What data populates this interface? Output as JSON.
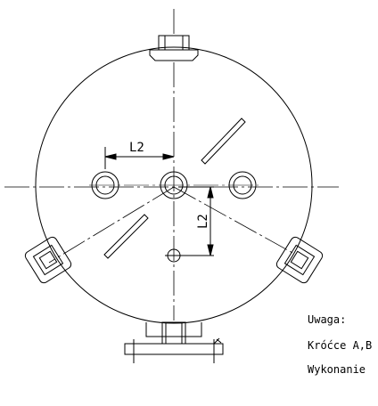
{
  "drawing": {
    "dimension_horizontal": "L2",
    "dimension_vertical": "L2"
  },
  "notes": {
    "heading": "Uwaga:",
    "line_1": "Króćce A,B",
    "line_2": "Wykonanie"
  }
}
